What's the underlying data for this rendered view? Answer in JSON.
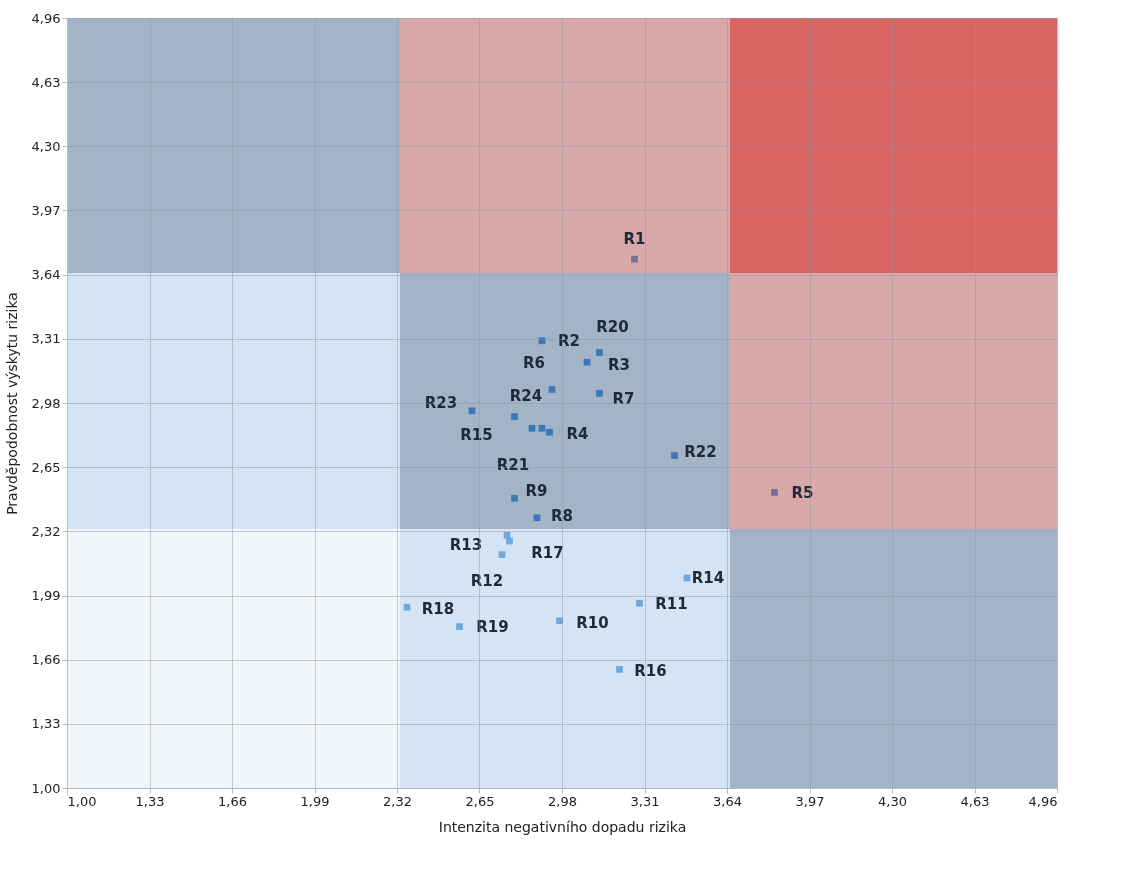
{
  "chart_data": {
    "type": "scatter",
    "xlabel": "Intenzita negativního dopadu rizika",
    "ylabel": "Pravděpodobnost výskytu rizika",
    "xlim": [
      1.0,
      4.96
    ],
    "ylim": [
      1.0,
      4.96
    ],
    "xticks": [
      {
        "value": 1.0,
        "label": "1,00"
      },
      {
        "value": 1.33,
        "label": "1,33"
      },
      {
        "value": 1.66,
        "label": "1,66"
      },
      {
        "value": 1.99,
        "label": "1,99"
      },
      {
        "value": 2.32,
        "label": "2,32"
      },
      {
        "value": 2.65,
        "label": "2,65"
      },
      {
        "value": 2.98,
        "label": "2,98"
      },
      {
        "value": 3.31,
        "label": "3,31"
      },
      {
        "value": 3.64,
        "label": "3,64"
      },
      {
        "value": 3.97,
        "label": "3,97"
      },
      {
        "value": 4.3,
        "label": "4,30"
      },
      {
        "value": 4.63,
        "label": "4,63"
      },
      {
        "value": 4.96,
        "label": "4,96"
      }
    ],
    "yticks": [
      {
        "value": 1.0,
        "label": "1,00"
      },
      {
        "value": 1.33,
        "label": "1,33"
      },
      {
        "value": 1.66,
        "label": "1,66"
      },
      {
        "value": 1.99,
        "label": "1,99"
      },
      {
        "value": 2.32,
        "label": "2,32"
      },
      {
        "value": 2.65,
        "label": "2,65"
      },
      {
        "value": 2.98,
        "label": "2,98"
      },
      {
        "value": 3.31,
        "label": "3,31"
      },
      {
        "value": 3.64,
        "label": "3,64"
      },
      {
        "value": 3.97,
        "label": "3,97"
      },
      {
        "value": 4.3,
        "label": "4,30"
      },
      {
        "value": 4.63,
        "label": "4,63"
      },
      {
        "value": 4.96,
        "label": "4,96"
      }
    ],
    "grid": true,
    "marker": "square",
    "series": [
      {
        "color": "#76709a",
        "x": [
          3.27,
          3.83
        ],
        "values": [
          3.72,
          2.52
        ]
      },
      {
        "color": "#3b78b5",
        "x": [
          2.9,
          3.13,
          3.08,
          2.94,
          3.13,
          2.62,
          2.79,
          2.86,
          2.9,
          2.93,
          3.43,
          2.79,
          2.88
        ],
        "values": [
          3.3,
          3.24,
          3.19,
          3.05,
          3.03,
          2.94,
          2.91,
          2.85,
          2.85,
          2.83,
          2.71,
          2.49,
          2.39
        ]
      },
      {
        "color": "#6fa8dc",
        "x": [
          2.76,
          2.77,
          2.74,
          3.48,
          3.29,
          2.36,
          2.57,
          2.97,
          3.21
        ],
        "values": [
          2.3,
          2.27,
          2.2,
          2.08,
          1.95,
          1.93,
          1.83,
          1.86,
          1.61
        ]
      }
    ],
    "annotations": [
      {
        "text": "R1",
        "x": 3.27,
        "y": 3.72
      },
      {
        "text": "R5",
        "x": 3.83,
        "y": 2.52
      },
      {
        "text": "R2",
        "x": 2.9,
        "y": 3.3
      },
      {
        "text": "R20",
        "x": 3.13,
        "y": 3.24
      },
      {
        "text": "R3",
        "x": 3.08,
        "y": 3.19
      },
      {
        "text": "R6",
        "x": 2.94,
        "y": 3.05
      },
      {
        "text": "R7",
        "x": 3.13,
        "y": 3.03
      },
      {
        "text": "R23",
        "x": 2.62,
        "y": 2.94
      },
      {
        "text": "R15",
        "x": 2.79,
        "y": 2.91
      },
      {
        "text": "R24",
        "x": 2.86,
        "y": 2.85
      },
      {
        "text": "R21",
        "x": 2.9,
        "y": 2.85
      },
      {
        "text": "R4",
        "x": 2.93,
        "y": 2.83
      },
      {
        "text": "R22",
        "x": 3.43,
        "y": 2.71
      },
      {
        "text": "R9",
        "x": 2.79,
        "y": 2.49
      },
      {
        "text": "R8",
        "x": 2.88,
        "y": 2.39
      },
      {
        "text": "R13",
        "x": 2.76,
        "y": 2.3
      },
      {
        "text": "R17",
        "x": 2.77,
        "y": 2.27
      },
      {
        "text": "R12",
        "x": 2.74,
        "y": 2.2
      },
      {
        "text": "R14",
        "x": 3.48,
        "y": 2.08
      },
      {
        "text": "R11",
        "x": 3.29,
        "y": 1.95
      },
      {
        "text": "R18",
        "x": 2.36,
        "y": 1.93
      },
      {
        "text": "R19",
        "x": 2.57,
        "y": 1.83
      },
      {
        "text": "R10",
        "x": 2.97,
        "y": 1.86
      },
      {
        "text": "R16",
        "x": 3.21,
        "y": 1.61
      }
    ]
  }
}
